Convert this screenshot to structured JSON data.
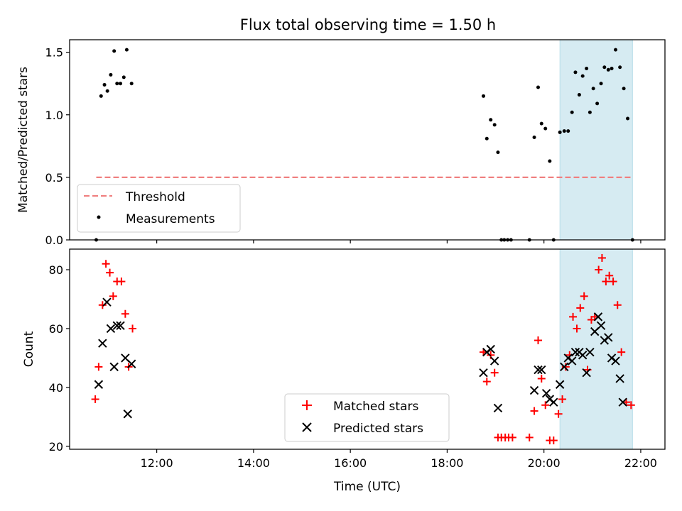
{
  "title": "Flux total observing time = 1.50 h",
  "colors": {
    "threshold": "#f08080",
    "measurements": "#000000",
    "matched": "#ff0000",
    "predicted": "#000000",
    "highlight": "#add8e6"
  },
  "chart_data": [
    {
      "type": "scatter",
      "ylabel": "Matched/Predicted stars",
      "ylim": [
        0,
        1.6
      ],
      "yticks": [
        0.0,
        0.5,
        1.0,
        1.5
      ],
      "ytick_labels": [
        "0.0",
        "0.5",
        "1.0",
        "1.5"
      ],
      "xlim_hours": [
        10.2,
        22.5
      ],
      "highlight_span_hours": [
        20.33,
        21.83
      ],
      "legend": {
        "placement": "lower-left",
        "entries": [
          "Threshold",
          "Measurements"
        ]
      },
      "threshold": {
        "name": "Threshold",
        "value": 0.5,
        "x_hours": [
          10.75,
          21.83
        ]
      },
      "series": [
        {
          "name": "Measurements",
          "marker": "dot",
          "points": [
            [
              10.75,
              0.0
            ],
            [
              10.85,
              1.15
            ],
            [
              10.92,
              1.24
            ],
            [
              10.98,
              1.19
            ],
            [
              11.05,
              1.32
            ],
            [
              11.12,
              1.51
            ],
            [
              11.18,
              1.25
            ],
            [
              11.25,
              1.25
            ],
            [
              11.32,
              1.3
            ],
            [
              11.38,
              1.52
            ],
            [
              11.48,
              1.25
            ],
            [
              18.75,
              1.15
            ],
            [
              18.82,
              0.81
            ],
            [
              18.9,
              0.96
            ],
            [
              18.98,
              0.92
            ],
            [
              19.05,
              0.7
            ],
            [
              19.12,
              0.0
            ],
            [
              19.18,
              0.0
            ],
            [
              19.25,
              0.0
            ],
            [
              19.32,
              0.0
            ],
            [
              19.7,
              0.0
            ],
            [
              19.8,
              0.82
            ],
            [
              19.88,
              1.22
            ],
            [
              19.95,
              0.93
            ],
            [
              20.03,
              0.89
            ],
            [
              20.12,
              0.63
            ],
            [
              20.2,
              0.0
            ],
            [
              20.33,
              0.86
            ],
            [
              20.42,
              0.87
            ],
            [
              20.5,
              0.87
            ],
            [
              20.58,
              1.02
            ],
            [
              20.65,
              1.34
            ],
            [
              20.73,
              1.16
            ],
            [
              20.8,
              1.31
            ],
            [
              20.88,
              1.37
            ],
            [
              20.95,
              1.02
            ],
            [
              21.02,
              1.21
            ],
            [
              21.1,
              1.09
            ],
            [
              21.18,
              1.25
            ],
            [
              21.25,
              1.38
            ],
            [
              21.33,
              1.36
            ],
            [
              21.4,
              1.37
            ],
            [
              21.48,
              1.52
            ],
            [
              21.57,
              1.38
            ],
            [
              21.65,
              1.21
            ],
            [
              21.73,
              0.97
            ],
            [
              21.83,
              0.0
            ]
          ]
        }
      ]
    },
    {
      "type": "scatter",
      "xlabel": "Time (UTC)",
      "ylabel": "Count",
      "ylim": [
        19,
        87
      ],
      "yticks": [
        20,
        40,
        60,
        80
      ],
      "ytick_labels": [
        "20",
        "40",
        "60",
        "80"
      ],
      "xticks_hours": [
        12,
        14,
        16,
        18,
        20,
        22
      ],
      "xtick_labels": [
        "12:00",
        "14:00",
        "16:00",
        "18:00",
        "20:00",
        "22:00"
      ],
      "xlim_hours": [
        10.2,
        22.5
      ],
      "highlight_span_hours": [
        20.33,
        21.83
      ],
      "legend": {
        "placement": "lower-center",
        "entries": [
          "Matched stars",
          "Predicted stars"
        ]
      },
      "series": [
        {
          "name": "Matched stars",
          "marker": "plus",
          "points": [
            [
              10.73,
              36
            ],
            [
              10.8,
              47
            ],
            [
              10.88,
              68
            ],
            [
              10.95,
              82
            ],
            [
              11.03,
              79
            ],
            [
              11.1,
              71
            ],
            [
              11.18,
              76
            ],
            [
              11.27,
              76
            ],
            [
              11.35,
              65
            ],
            [
              11.42,
              47
            ],
            [
              11.5,
              60
            ],
            [
              18.75,
              52
            ],
            [
              18.82,
              42
            ],
            [
              18.9,
              51
            ],
            [
              18.98,
              45
            ],
            [
              19.05,
              23
            ],
            [
              19.12,
              23
            ],
            [
              19.2,
              23
            ],
            [
              19.27,
              23
            ],
            [
              19.35,
              23
            ],
            [
              19.7,
              23
            ],
            [
              19.8,
              32
            ],
            [
              19.88,
              56
            ],
            [
              19.95,
              43
            ],
            [
              20.03,
              34
            ],
            [
              20.12,
              22
            ],
            [
              20.2,
              22
            ],
            [
              20.3,
              31
            ],
            [
              20.38,
              36
            ],
            [
              20.45,
              47
            ],
            [
              20.53,
              51
            ],
            [
              20.6,
              64
            ],
            [
              20.68,
              60
            ],
            [
              20.75,
              67
            ],
            [
              20.83,
              71
            ],
            [
              20.9,
              46
            ],
            [
              20.98,
              63
            ],
            [
              21.05,
              64
            ],
            [
              21.13,
              80
            ],
            [
              21.2,
              84
            ],
            [
              21.28,
              76
            ],
            [
              21.35,
              78
            ],
            [
              21.43,
              76
            ],
            [
              21.52,
              68
            ],
            [
              21.6,
              52
            ],
            [
              21.7,
              35
            ],
            [
              21.8,
              34
            ]
          ]
        },
        {
          "name": "Predicted stars",
          "marker": "x",
          "points": [
            [
              10.8,
              41
            ],
            [
              10.88,
              55
            ],
            [
              10.97,
              69
            ],
            [
              11.05,
              60
            ],
            [
              11.12,
              47
            ],
            [
              11.18,
              61
            ],
            [
              11.25,
              61
            ],
            [
              11.35,
              50
            ],
            [
              11.4,
              31
            ],
            [
              11.48,
              48
            ],
            [
              18.75,
              45
            ],
            [
              18.82,
              52
            ],
            [
              18.9,
              53
            ],
            [
              18.98,
              49
            ],
            [
              19.05,
              33
            ],
            [
              19.8,
              39
            ],
            [
              19.88,
              46
            ],
            [
              19.95,
              46
            ],
            [
              20.05,
              38
            ],
            [
              20.12,
              36
            ],
            [
              20.2,
              35
            ],
            [
              20.33,
              41
            ],
            [
              20.42,
              47
            ],
            [
              20.5,
              50
            ],
            [
              20.58,
              49
            ],
            [
              20.65,
              52
            ],
            [
              20.73,
              52
            ],
            [
              20.8,
              51
            ],
            [
              20.88,
              45
            ],
            [
              20.95,
              52
            ],
            [
              21.05,
              59
            ],
            [
              21.12,
              64
            ],
            [
              21.18,
              61
            ],
            [
              21.25,
              56
            ],
            [
              21.33,
              57
            ],
            [
              21.4,
              50
            ],
            [
              21.48,
              49
            ],
            [
              21.57,
              43
            ],
            [
              21.63,
              35
            ]
          ]
        }
      ]
    }
  ]
}
